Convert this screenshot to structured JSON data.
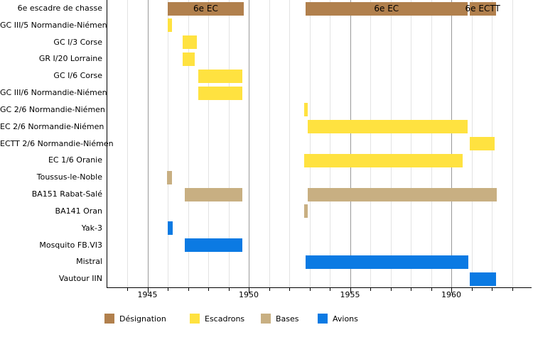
{
  "chart_data": {
    "type": "bar",
    "subtype": "horizontal-timeline-gantt",
    "title": "",
    "xlabel": "",
    "ylabel": "",
    "x_axis": {
      "range": [
        1943,
        1964
      ],
      "major_ticks": [
        1945,
        1950,
        1955,
        1960
      ],
      "major_tick_labels": [
        "1945",
        "1950",
        "1955",
        "1960"
      ],
      "minor_tick_step": 1,
      "grid": "on"
    },
    "legend": {
      "position": "bottom",
      "items": [
        {
          "label": "Désignation",
          "color": "#B1804D"
        },
        {
          "label": "Escadrons",
          "color": "#FFE240"
        },
        {
          "label": "Bases",
          "color": "#C8AF82"
        },
        {
          "label": "Avions",
          "color": "#0B7AE3"
        }
      ]
    },
    "rows": [
      {
        "label": "6e escadre de chasse",
        "category": "Désignation",
        "spans": [
          {
            "start": 1946.0,
            "end": 1949.75,
            "text": "6e EC"
          },
          {
            "start": 1952.8,
            "end": 1960.8,
            "text": "6e EC"
          },
          {
            "start": 1960.9,
            "end": 1962.2,
            "text": "6e ECTT"
          }
        ]
      },
      {
        "label": "GC III/5 Normandie-Niémen",
        "category": "Escadrons",
        "spans": [
          {
            "start": 1946.0,
            "end": 1946.2
          }
        ]
      },
      {
        "label": "GC I/3 Corse",
        "category": "Escadrons",
        "spans": [
          {
            "start": 1946.75,
            "end": 1947.45
          }
        ]
      },
      {
        "label": "GR I/20 Lorraine",
        "category": "Escadrons",
        "spans": [
          {
            "start": 1946.75,
            "end": 1947.35
          }
        ]
      },
      {
        "label": "GC I/6 Corse",
        "category": "Escadrons",
        "spans": [
          {
            "start": 1947.5,
            "end": 1949.7
          }
        ]
      },
      {
        "label": "GC III/6 Normandie-Niémen",
        "category": "Escadrons",
        "spans": [
          {
            "start": 1947.5,
            "end": 1949.7
          }
        ]
      },
      {
        "label": "GC 2/6 Normandie-Niémen",
        "category": "Escadrons",
        "spans": [
          {
            "start": 1952.75,
            "end": 1952.9
          }
        ]
      },
      {
        "label": "EC 2/6 Normandie-Niémen",
        "category": "Escadrons",
        "spans": [
          {
            "start": 1952.9,
            "end": 1960.8
          }
        ]
      },
      {
        "label": "ECTT 2/6 Normandie-Niémen",
        "category": "Escadrons",
        "spans": [
          {
            "start": 1960.9,
            "end": 1962.15
          }
        ]
      },
      {
        "label": "EC 1/6 Oranie",
        "category": "Escadrons",
        "spans": [
          {
            "start": 1952.75,
            "end": 1960.55
          }
        ]
      },
      {
        "label": "Toussus-le-Noble",
        "category": "Bases",
        "spans": [
          {
            "start": 1945.95,
            "end": 1946.2
          }
        ]
      },
      {
        "label": "BA151 Rabat-Salé",
        "category": "Bases",
        "spans": [
          {
            "start": 1946.85,
            "end": 1949.7
          },
          {
            "start": 1952.9,
            "end": 1962.25
          }
        ]
      },
      {
        "label": "BA141 Oran",
        "category": "Bases",
        "spans": [
          {
            "start": 1952.75,
            "end": 1952.9
          }
        ]
      },
      {
        "label": "Yak-3",
        "category": "Avions",
        "spans": [
          {
            "start": 1946.0,
            "end": 1946.25
          }
        ]
      },
      {
        "label": "Mosquito FB.VI3",
        "category": "Avions",
        "spans": [
          {
            "start": 1946.85,
            "end": 1949.7
          }
        ]
      },
      {
        "label": "Mistral",
        "category": "Avions",
        "spans": [
          {
            "start": 1952.8,
            "end": 1960.85
          }
        ]
      },
      {
        "label": "Vautour IIN",
        "category": "Avions",
        "spans": [
          {
            "start": 1960.9,
            "end": 1962.2
          }
        ]
      }
    ],
    "style": {
      "axis_color": "#000000",
      "major_grid_color": "#999999",
      "minor_grid_color": "#e3e3e3",
      "background": "#ffffff"
    }
  }
}
